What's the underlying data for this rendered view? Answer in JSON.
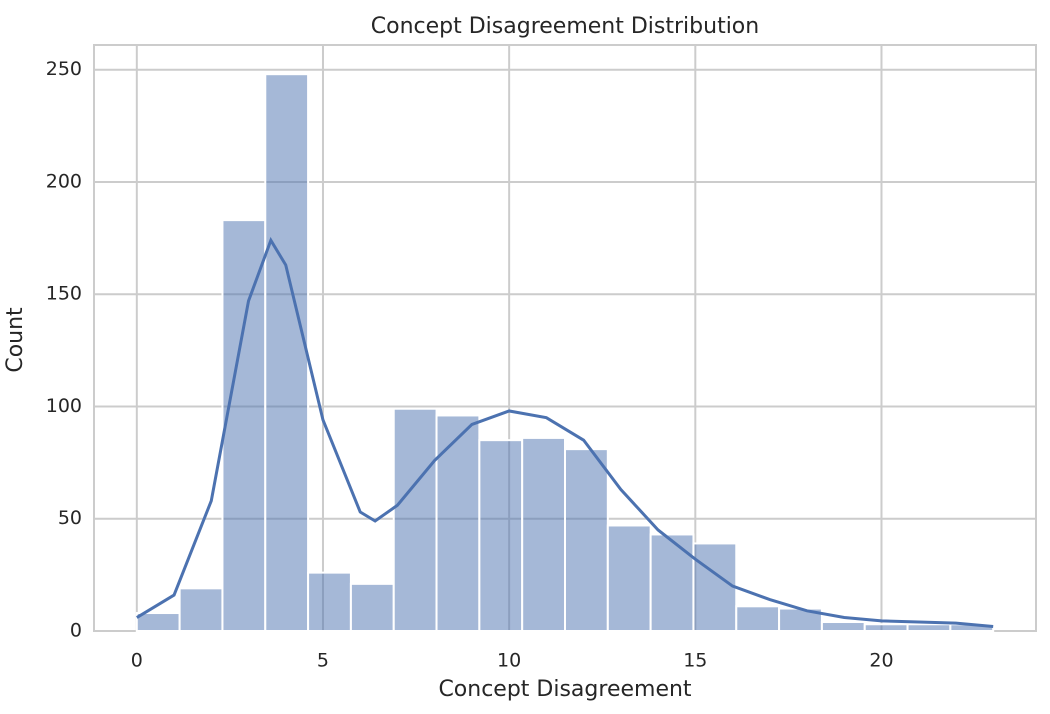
{
  "chart_data": {
    "type": "histogram",
    "title": "Concept Disagreement Distribution",
    "x_label": "Concept Disagreement",
    "y_label": "Count",
    "bins": [
      0,
      1.15,
      2.3,
      3.45,
      4.6,
      5.75,
      6.9,
      8.05,
      9.2,
      10.35,
      11.5,
      12.65,
      13.8,
      14.95,
      16.1,
      17.25,
      18.4,
      19.55,
      20.7,
      21.85,
      23
    ],
    "values": [
      8,
      19,
      183,
      248,
      26,
      21,
      99,
      96,
      85,
      86,
      81,
      47,
      43,
      39,
      11,
      10,
      4,
      3,
      3,
      3
    ],
    "color": "#4c72b0",
    "kde": {
      "x": [
        0,
        1,
        2,
        3,
        3.6,
        4,
        5,
        6,
        6.4,
        7,
        8,
        9,
        10,
        11,
        12,
        13,
        14,
        15,
        16,
        17,
        18,
        19,
        20,
        21,
        22,
        23
      ],
      "values": [
        6,
        16,
        58,
        147,
        174,
        163,
        94,
        53,
        49,
        56,
        76,
        92,
        98,
        95,
        85,
        63,
        45,
        32,
        20,
        14,
        9,
        6,
        4.5,
        4,
        3.5,
        2
      ],
      "color": "#4c72b0"
    },
    "xlim": [
      -1.15,
      24.15
    ],
    "ylim": [
      0,
      261
    ],
    "xticks": [
      0,
      5,
      10,
      15,
      20
    ],
    "yticks": [
      0,
      50,
      100,
      150,
      200,
      250
    ],
    "grid": true
  }
}
